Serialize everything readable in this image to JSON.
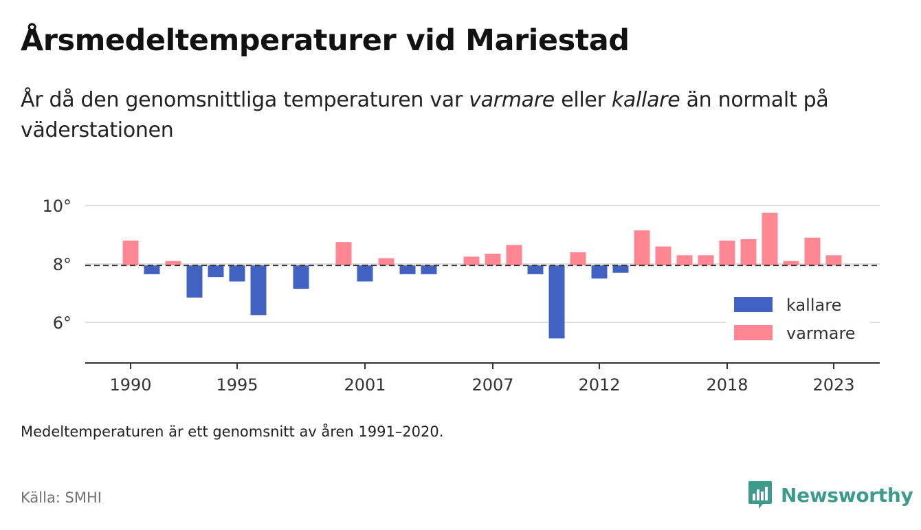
{
  "title": "Årsmedeltemperaturer vid Mariestad",
  "subtitle": {
    "part1": "År då den genomsnittliga temperaturen var ",
    "warmer": "varmare",
    "part2": " eller ",
    "colder": "kallare",
    "part3": " än normalt på väderstationen"
  },
  "footnote": "Medeltemperaturen är ett genomsnitt av åren 1991–2020.",
  "source": "Källa: SMHI",
  "brand": {
    "name": "Newsworthy",
    "icon": "newsworthy-logo-icon",
    "color": "#3d9b8c"
  },
  "chart_data": {
    "type": "bar",
    "title": "Årsmedeltemperaturer vid Mariestad",
    "baseline": 7.95,
    "x": [
      1990,
      1991,
      1992,
      1993,
      1994,
      1995,
      1996,
      1997,
      1998,
      1999,
      2000,
      2001,
      2002,
      2003,
      2004,
      2005,
      2006,
      2007,
      2008,
      2009,
      2010,
      2011,
      2012,
      2013,
      2014,
      2015,
      2016,
      2017,
      2018,
      2019,
      2020,
      2021,
      2022,
      2023
    ],
    "values": [
      8.8,
      7.65,
      8.1,
      6.85,
      7.55,
      7.4,
      6.25,
      null,
      7.15,
      null,
      8.75,
      7.4,
      8.2,
      7.65,
      7.65,
      null,
      8.25,
      8.35,
      8.65,
      7.65,
      5.45,
      8.4,
      7.5,
      7.7,
      9.15,
      8.6,
      8.3,
      8.3,
      8.8,
      8.85,
      9.75,
      8.1,
      8.9,
      8.3
    ],
    "x_ticks": [
      1990,
      1995,
      2001,
      2007,
      2012,
      2018,
      2023
    ],
    "y_ticks": [
      6,
      8,
      10
    ],
    "y_tick_labels": [
      "6°",
      "8°",
      "10°"
    ],
    "ylim": [
      4.6,
      10.3
    ],
    "grid": true,
    "legend": {
      "position": "right",
      "items": [
        {
          "key": "colder",
          "label": "kallare",
          "color": "#4262c2"
        },
        {
          "key": "warmer",
          "label": "varmare",
          "color": "#ff8794"
        }
      ]
    },
    "colors": {
      "colder": "#4262c2",
      "warmer": "#ff8794",
      "grid": "#dddddd",
      "baseline": "#333333"
    }
  }
}
